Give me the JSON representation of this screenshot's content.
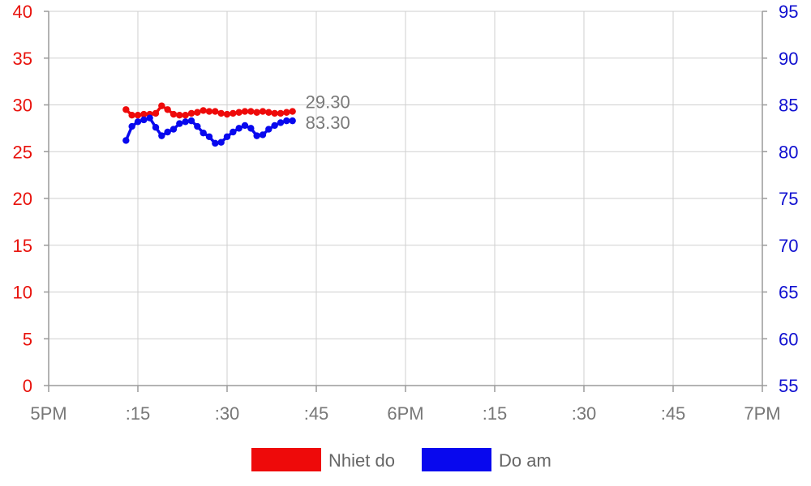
{
  "chart_data": {
    "type": "line",
    "x_start": "5PM",
    "x_end": "7PM",
    "x_ticks": [
      "5PM",
      ":15",
      ":30",
      ":45",
      "6PM",
      ":15",
      ":30",
      ":45",
      "7PM"
    ],
    "y_left": {
      "min": 0,
      "max": 40,
      "ticks": [
        0,
        5,
        10,
        15,
        20,
        25,
        30,
        35,
        40
      ],
      "color": "#e8120c"
    },
    "y_right": {
      "min": 55,
      "max": 95,
      "ticks": [
        55,
        60,
        65,
        70,
        75,
        80,
        85,
        90,
        95
      ],
      "color": "#1010d0"
    },
    "grid": true,
    "legend": "bottom-center",
    "x_minutes_after_5pm": [
      13,
      14,
      15,
      16,
      17,
      18,
      19,
      20,
      21,
      22,
      23,
      24,
      25,
      26,
      27,
      28,
      29,
      30,
      31,
      32,
      33,
      34,
      35,
      36,
      37,
      38,
      39,
      40,
      41
    ],
    "series": [
      {
        "name": "Nhiet do",
        "axis": "left",
        "color": "#ee0a0a",
        "end_label": "29.30",
        "values": [
          29.5,
          28.9,
          28.9,
          29.0,
          29.0,
          29.1,
          29.9,
          29.5,
          29.0,
          28.9,
          28.9,
          29.1,
          29.2,
          29.4,
          29.3,
          29.3,
          29.1,
          29.0,
          29.1,
          29.2,
          29.3,
          29.3,
          29.2,
          29.3,
          29.2,
          29.1,
          29.1,
          29.2,
          29.3
        ]
      },
      {
        "name": "Do am",
        "axis": "right",
        "color": "#0808ee",
        "end_label": "83.30",
        "values": [
          81.2,
          82.7,
          83.2,
          83.4,
          83.6,
          82.6,
          81.7,
          82.1,
          82.4,
          83.0,
          83.2,
          83.3,
          82.7,
          82.0,
          81.6,
          80.9,
          81.0,
          81.6,
          82.1,
          82.5,
          82.8,
          82.5,
          81.7,
          81.8,
          82.4,
          82.8,
          83.1,
          83.3,
          83.3
        ]
      }
    ]
  }
}
